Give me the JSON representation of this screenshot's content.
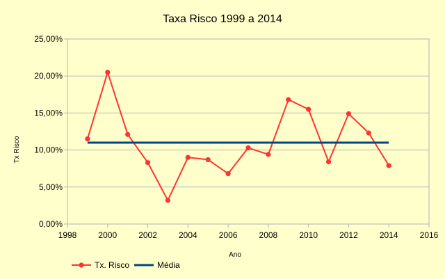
{
  "chart_data": {
    "type": "line",
    "title": "Taxa Risco 1999 a 2014",
    "xlabel": "Ano",
    "ylabel": "Tx Risco",
    "xlim": [
      1998,
      2016
    ],
    "ylim": [
      0,
      0.25
    ],
    "x_ticks": [
      1998,
      2000,
      2002,
      2004,
      2006,
      2008,
      2010,
      2012,
      2014,
      2016
    ],
    "y_ticks": [
      {
        "value": 0,
        "label": "0,00%"
      },
      {
        "value": 0.05,
        "label": "5,00%"
      },
      {
        "value": 0.1,
        "label": "10,00%"
      },
      {
        "value": 0.15,
        "label": "15,00%"
      },
      {
        "value": 0.2,
        "label": "20,00%"
      },
      {
        "value": 0.25,
        "label": "25,00%"
      }
    ],
    "grid": {
      "horizontal": true,
      "vertical": false
    },
    "legend": "bottom-left",
    "series": [
      {
        "name": "Tx. Risco",
        "color": "#ff3333",
        "markers": true,
        "x": [
          1999,
          2000,
          2001,
          2002,
          2003,
          2004,
          2005,
          2006,
          2007,
          2008,
          2009,
          2010,
          2011,
          2012,
          2013,
          2014
        ],
        "y": [
          0.115,
          0.205,
          0.121,
          0.083,
          0.032,
          0.09,
          0.087,
          0.068,
          0.103,
          0.094,
          0.168,
          0.155,
          0.084,
          0.149,
          0.123,
          0.079
        ]
      },
      {
        "name": "Média",
        "color": "#004586",
        "markers": false,
        "x": [
          1999,
          2014
        ],
        "y": [
          0.11,
          0.11
        ]
      }
    ]
  }
}
